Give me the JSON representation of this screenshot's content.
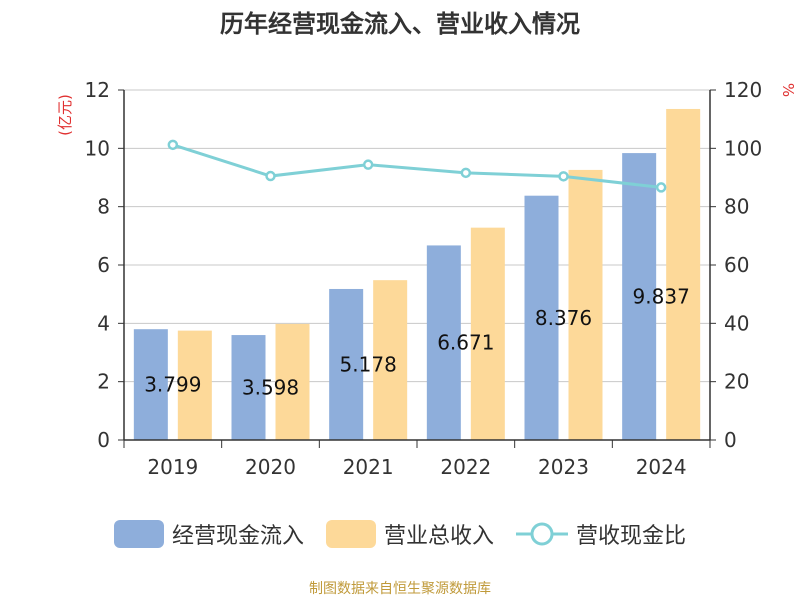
{
  "title": "历年经营现金流入、营业收入情况",
  "source": "制图数据来自恒生聚源数据库",
  "colors": {
    "cash_inflow": "#8eaedb",
    "revenue": "#fdd999",
    "ratio": "#7fd0d6"
  },
  "chart_data": {
    "type": "bar",
    "title": "历年经营现金流入、营业收入情况",
    "categories": [
      "2019",
      "2020",
      "2021",
      "2022",
      "2023",
      "2024"
    ],
    "ylabel": "(亿元)",
    "y2label": "%",
    "ylim": [
      0,
      12
    ],
    "yticks": [
      0,
      2,
      4,
      6,
      8,
      10,
      12
    ],
    "y2lim": [
      0,
      120
    ],
    "y2ticks": [
      0,
      20,
      40,
      60,
      80,
      100,
      120
    ],
    "grid": true,
    "legend_position": "bottom",
    "series": [
      {
        "name": "经营现金流入",
        "type": "bar",
        "axis": "left",
        "values": [
          3.799,
          3.598,
          5.178,
          6.671,
          8.376,
          9.837
        ],
        "labels": [
          "3.799",
          "3.598",
          "5.178",
          "6.671",
          "8.376",
          "9.837"
        ]
      },
      {
        "name": "营业总收入",
        "type": "bar",
        "axis": "left",
        "values": [
          3.75,
          3.98,
          5.48,
          7.28,
          9.26,
          11.35
        ]
      },
      {
        "name": "营收现金比",
        "type": "line",
        "axis": "right",
        "values": [
          101.2,
          90.5,
          94.4,
          91.6,
          90.4,
          86.6
        ]
      }
    ]
  }
}
